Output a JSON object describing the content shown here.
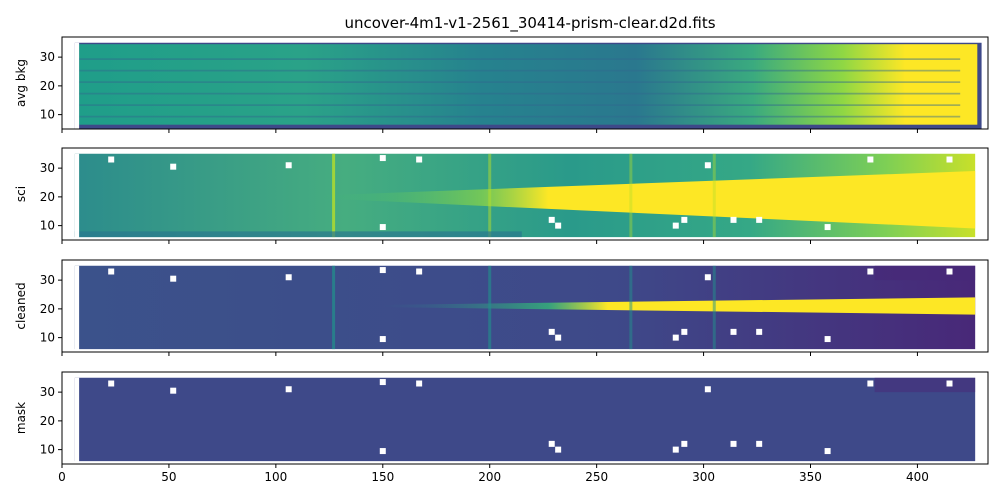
{
  "title": "uncover-4m1-v1-2561_30414-prism-clear.d2d.fits",
  "colors": {
    "colormap": [
      "#440154",
      "#482878",
      "#3e4989",
      "#31688e",
      "#26828e",
      "#1f9e89",
      "#35b779",
      "#6ece58",
      "#b5de2b",
      "#fde725"
    ],
    "frame": "#000000",
    "background": "#ffffff"
  },
  "chart_data": [
    {
      "type": "heatmap",
      "panel": "avg-bkg",
      "ylabel": "avg bkg",
      "xlim": [
        0,
        433
      ],
      "ylim": [
        5,
        37
      ],
      "xticks": [
        0,
        50,
        100,
        150,
        200,
        250,
        300,
        350,
        400
      ],
      "yticks": [
        10,
        20,
        30
      ],
      "data_x_range": [
        6,
        427
      ],
      "data_y_range": [
        5,
        35
      ],
      "grid": false
    },
    {
      "type": "heatmap",
      "panel": "sci",
      "ylabel": "sci",
      "xlim": [
        0,
        433
      ],
      "ylim": [
        5,
        37
      ],
      "xticks": [
        0,
        50,
        100,
        150,
        200,
        250,
        300,
        350,
        400
      ],
      "yticks": [
        10,
        20,
        30
      ],
      "trace_center_y": 20,
      "grid": false
    },
    {
      "type": "heatmap",
      "panel": "cleaned",
      "ylabel": "cleaned",
      "xlim": [
        0,
        433
      ],
      "ylim": [
        5,
        37
      ],
      "xticks": [
        0,
        50,
        100,
        150,
        200,
        250,
        300,
        350,
        400
      ],
      "yticks": [
        10,
        20,
        30
      ],
      "trace_center_y": 21,
      "grid": false
    },
    {
      "type": "heatmap",
      "panel": "mask",
      "ylabel": "mask",
      "xlim": [
        0,
        433
      ],
      "ylim": [
        5,
        37
      ],
      "xticks": [
        0,
        50,
        100,
        150,
        200,
        250,
        300,
        350,
        400
      ],
      "xticklabels": [
        "0",
        "50",
        "100",
        "150",
        "200",
        "250",
        "300",
        "350",
        "400"
      ],
      "yticks": [
        10,
        20,
        30
      ],
      "grid": false
    }
  ]
}
